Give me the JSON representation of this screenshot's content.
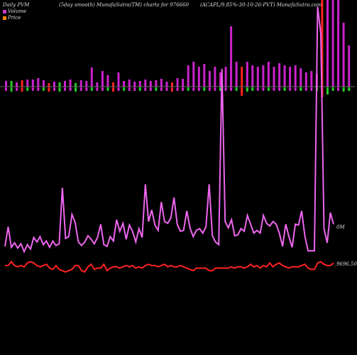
{
  "header": {
    "left": "Daily PVM",
    "middle": "(5day smooth) MunafaSutra(TM) charts for 976660",
    "right": "(ACAPL/9.85%-30-10-26-PVT) MunafaSutra.com"
  },
  "legend": [
    {
      "label": "Volume",
      "color": "#cc33cc"
    },
    {
      "label": "Price",
      "color": "#ff8800"
    }
  ],
  "colors": {
    "background": "#000000",
    "volume_line": "#ee66ee",
    "price_line": "#ff2222",
    "bar_up": "#cc22cc",
    "bar_down_red": "#ff2222",
    "bar_down_green": "#22cc22",
    "baseline": "#cccccc"
  },
  "chart_data": {
    "type": "line",
    "right_labels": {
      "volume": "0M",
      "price": "9696.50"
    },
    "series": [
      {
        "name": "Volume",
        "values": [
          20,
          42,
          19,
          24,
          18,
          23,
          14,
          22,
          17,
          30,
          25,
          31,
          22,
          26,
          19,
          26,
          21,
          23,
          86,
          29,
          31,
          56,
          47,
          25,
          21,
          25,
          32,
          28,
          23,
          30,
          45,
          22,
          20,
          31,
          26,
          50,
          37,
          46,
          28,
          44,
          37,
          25,
          40,
          30,
          90,
          48,
          61,
          44,
          38,
          70,
          48,
          46,
          52,
          75,
          45,
          37,
          38,
          60,
          41,
          31,
          38,
          40,
          35,
          42,
          90,
          32,
          25,
          22,
          220,
          48,
          41,
          50,
          32,
          33,
          40,
          37,
          55,
          45,
          35,
          38,
          35,
          55,
          46,
          43,
          48,
          45,
          35,
          20,
          45,
          31,
          19,
          45,
          44,
          60,
          32,
          15,
          15,
          15,
          290,
          260,
          40,
          24,
          58,
          45
        ]
      },
      {
        "name": "Price",
        "values": [
          5,
          5,
          8,
          5,
          4,
          5,
          4,
          7,
          8,
          7,
          5,
          4,
          5,
          6,
          3,
          2,
          5,
          2,
          1,
          0,
          1,
          2,
          5,
          5,
          1,
          0,
          4,
          6,
          2,
          3,
          3,
          6,
          1,
          3,
          4,
          4,
          3,
          4,
          5,
          4,
          5,
          3,
          4,
          3,
          5,
          6,
          5,
          5,
          4,
          5,
          6,
          4,
          5,
          4,
          4,
          5,
          4,
          3,
          2,
          1,
          3,
          3,
          3,
          3,
          1,
          1,
          3,
          3,
          3,
          3,
          3,
          4,
          3,
          4,
          4,
          3,
          4,
          6,
          4,
          5,
          3,
          5,
          4,
          7,
          4,
          6,
          7,
          5,
          4,
          3,
          4,
          4,
          4,
          5,
          6,
          3,
          2,
          2,
          7,
          8,
          6,
          5,
          5,
          7
        ]
      }
    ],
    "volume_bars": [
      {
        "v": 8,
        "c": "u"
      },
      {
        "v": 8,
        "c": "g"
      },
      {
        "v": 6,
        "c": "u"
      },
      {
        "v": 9,
        "c": "r"
      },
      {
        "v": 10,
        "c": "u"
      },
      {
        "v": 10,
        "c": "u"
      },
      {
        "v": 12,
        "c": "u"
      },
      {
        "v": 9,
        "c": "u"
      },
      {
        "v": 5,
        "c": "r"
      },
      {
        "v": 7,
        "c": "u"
      },
      {
        "v": 6,
        "c": "g"
      },
      {
        "v": 8,
        "c": "u"
      },
      {
        "v": 10,
        "c": "u"
      },
      {
        "v": 5,
        "c": "g"
      },
      {
        "v": 9,
        "c": "u"
      },
      {
        "v": 8,
        "c": "u"
      },
      {
        "v": 27,
        "c": "u"
      },
      {
        "v": 6,
        "c": "u"
      },
      {
        "v": 22,
        "c": "u"
      },
      {
        "v": 16,
        "c": "u"
      },
      {
        "v": 6,
        "c": "r"
      },
      {
        "v": 20,
        "c": "u"
      },
      {
        "v": 8,
        "c": "u"
      },
      {
        "v": 10,
        "c": "u"
      },
      {
        "v": 7,
        "c": "u"
      },
      {
        "v": 8,
        "c": "u"
      },
      {
        "v": 10,
        "c": "u"
      },
      {
        "v": 8,
        "c": "u"
      },
      {
        "v": 9,
        "c": "u"
      },
      {
        "v": 11,
        "c": "u"
      },
      {
        "v": 7,
        "c": "u"
      },
      {
        "v": 6,
        "c": "r"
      },
      {
        "v": 12,
        "c": "u"
      },
      {
        "v": 11,
        "c": "u"
      },
      {
        "v": 30,
        "c": "u"
      },
      {
        "v": 35,
        "c": "u"
      },
      {
        "v": 28,
        "c": "u"
      },
      {
        "v": 32,
        "c": "u"
      },
      {
        "v": 22,
        "c": "u"
      },
      {
        "v": 28,
        "c": "u"
      },
      {
        "v": 20,
        "c": "u"
      },
      {
        "v": 28,
        "c": "u"
      },
      {
        "v": 85,
        "c": "u"
      },
      {
        "v": 35,
        "c": "u"
      },
      {
        "v": 28,
        "c": "r"
      },
      {
        "v": 35,
        "c": "u"
      },
      {
        "v": 30,
        "c": "u"
      },
      {
        "v": 28,
        "c": "u"
      },
      {
        "v": 30,
        "c": "u"
      },
      {
        "v": 35,
        "c": "u"
      },
      {
        "v": 28,
        "c": "u"
      },
      {
        "v": 33,
        "c": "u"
      },
      {
        "v": 30,
        "c": "u"
      },
      {
        "v": 28,
        "c": "u"
      },
      {
        "v": 30,
        "c": "u"
      },
      {
        "v": 26,
        "c": "u"
      },
      {
        "v": 20,
        "c": "u"
      },
      {
        "v": 22,
        "c": "u"
      },
      {
        "v": 18,
        "c": "u"
      },
      {
        "v": 125,
        "c": "r"
      },
      {
        "v": 125,
        "c": "u"
      },
      {
        "v": 125,
        "c": "u"
      },
      {
        "v": 125,
        "c": "u"
      },
      {
        "v": 90,
        "c": "u"
      },
      {
        "v": 58,
        "c": "u"
      }
    ],
    "bar_overlay": [
      {
        "i": 44,
        "c": "r",
        "v": 12
      },
      {
        "i": 45,
        "c": "g",
        "v": 6
      },
      {
        "i": 46,
        "c": "g",
        "v": 4
      },
      {
        "i": 52,
        "c": "g",
        "v": 3
      },
      {
        "i": 55,
        "c": "g",
        "v": 4
      },
      {
        "i": 59,
        "c": "r",
        "v": 14
      },
      {
        "i": 60,
        "c": "g",
        "v": 10
      },
      {
        "i": 63,
        "c": "g",
        "v": 6
      },
      {
        "i": 64,
        "c": "g",
        "v": 5
      }
    ],
    "ylim_volume": [
      0,
      300
    ],
    "ylim_price": [
      0,
      10
    ]
  }
}
